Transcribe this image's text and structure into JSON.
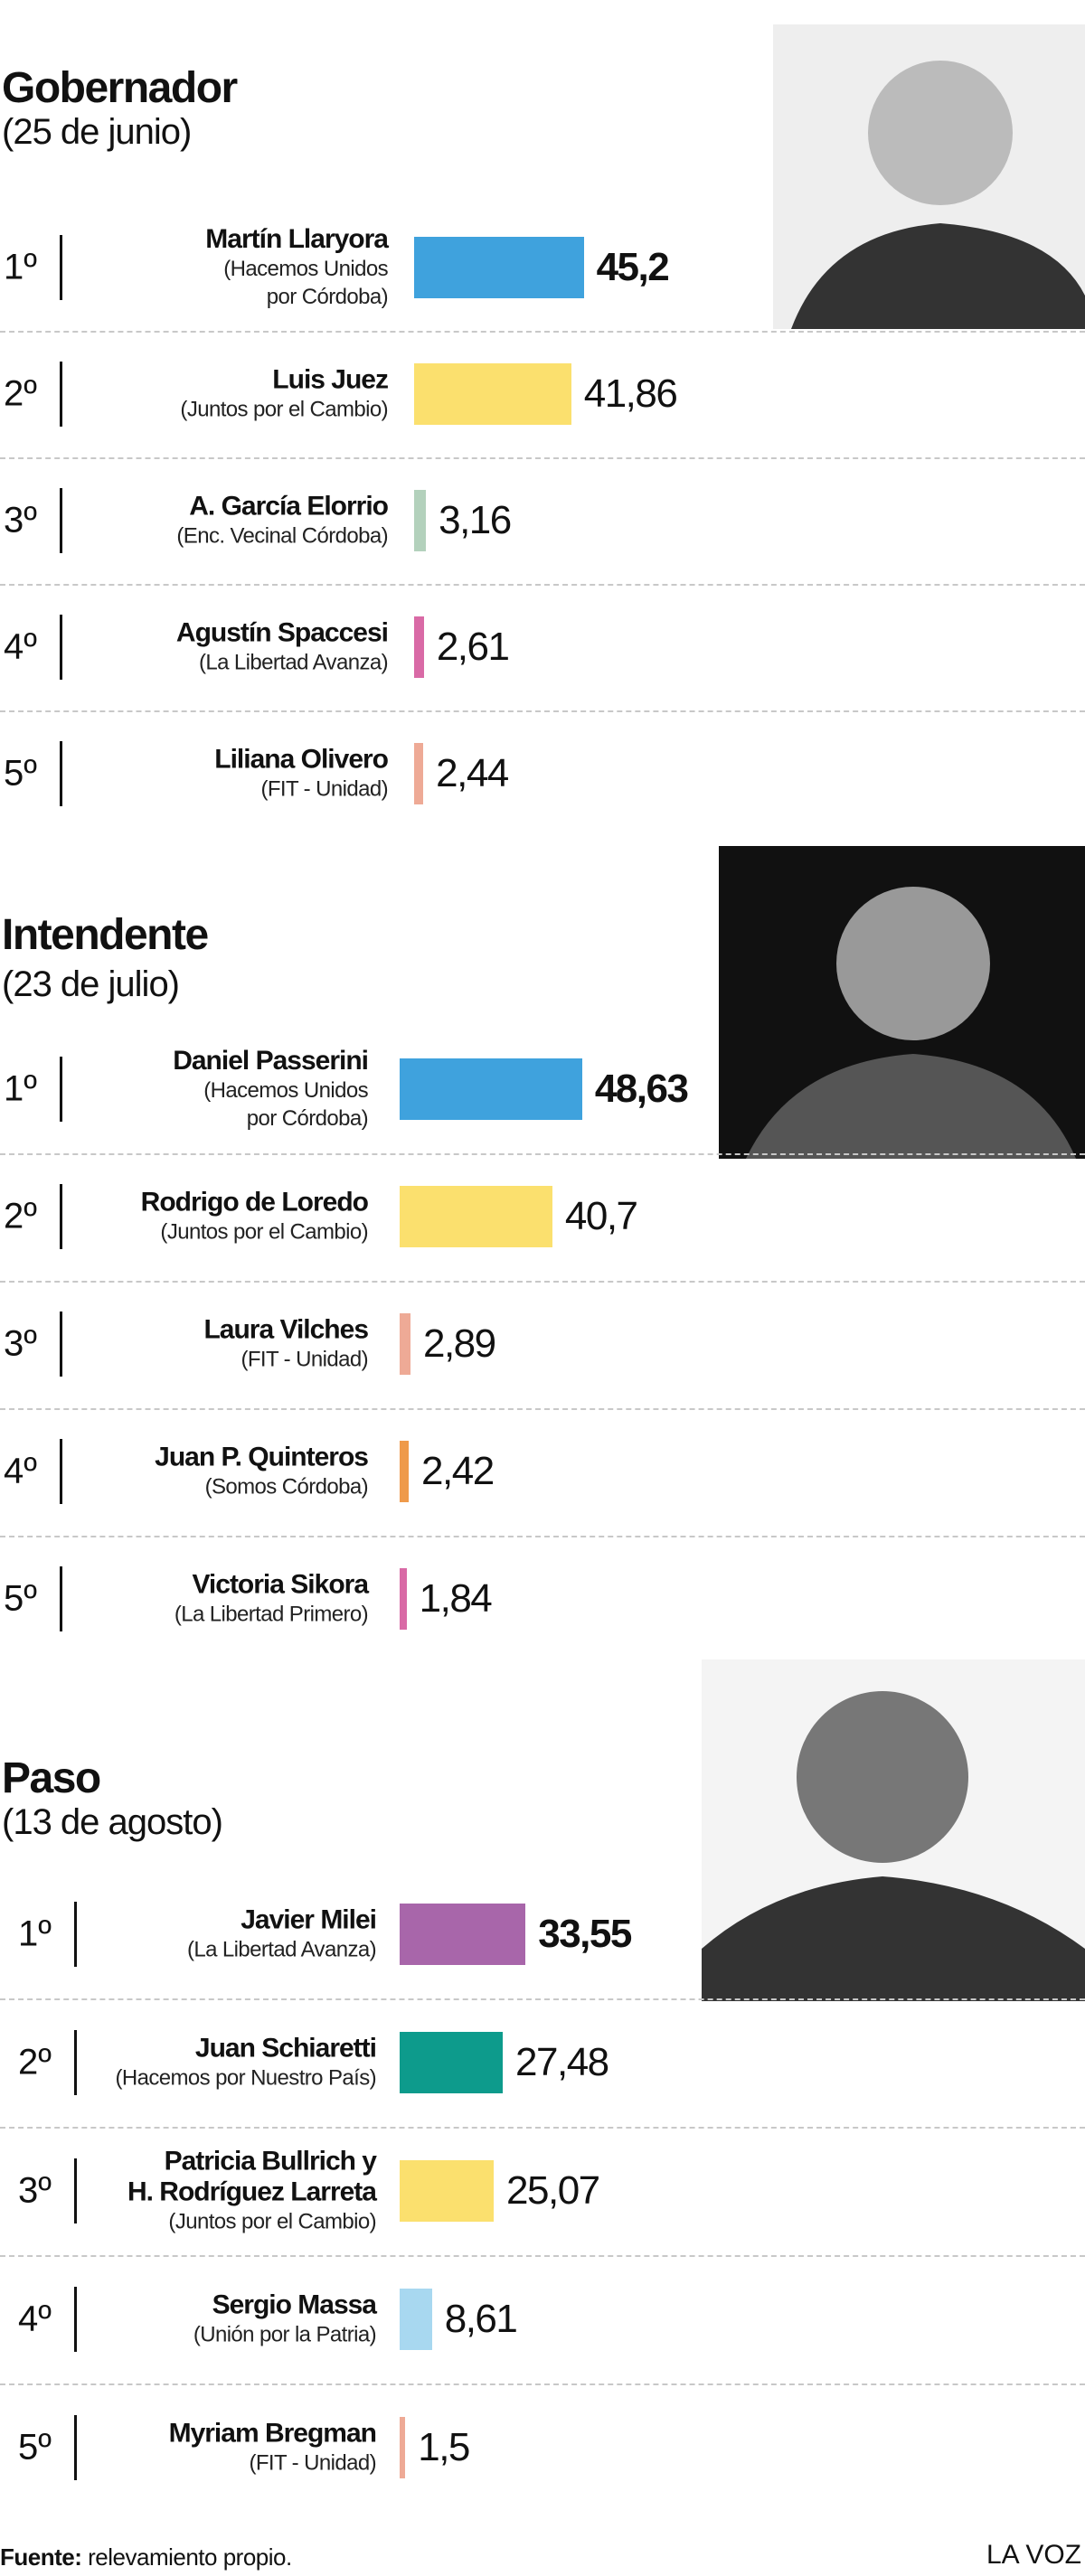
{
  "chart_data": [
    {
      "type": "bar",
      "title": "Gobernador",
      "subtitle": "(25 de junio)",
      "ranks": [
        "1º",
        "2º",
        "3º",
        "4º",
        "5º"
      ],
      "categories": [
        "Martín Llaryora",
        "Luis Juez",
        "A. García Elorrio",
        "Agustín Spaccesi",
        "Liliana Olivero"
      ],
      "parties": [
        "(Hacemos Unidos\npor Córdoba)",
        "(Juntos por el Cambio)",
        "(Enc. Vecinal Córdoba)",
        "(La Libertad Avanza)",
        "(FIT - Unidad)"
      ],
      "values": [
        45.2,
        41.86,
        3.16,
        2.61,
        2.44
      ],
      "value_labels": [
        "45,2",
        "41,86",
        "3,16",
        "2,61",
        "2,44"
      ],
      "colors": [
        "#3fa2dd",
        "#fbe06e",
        "#b3d1bc",
        "#d96aa6",
        "#eeaa96"
      ]
    },
    {
      "type": "bar",
      "title": "Intendente",
      "subtitle": "(23 de julio)",
      "ranks": [
        "1º",
        "2º",
        "3º",
        "4º",
        "5º"
      ],
      "categories": [
        "Daniel Passerini",
        "Rodrigo de Loredo",
        "Laura Vilches",
        "Juan P. Quinteros",
        "Victoria Sikora"
      ],
      "parties": [
        "(Hacemos Unidos\npor Córdoba)",
        "(Juntos por el Cambio)",
        "(FIT - Unidad)",
        "(Somos Córdoba)",
        "(La Libertad Primero)"
      ],
      "values": [
        48.63,
        40.7,
        2.89,
        2.42,
        1.84
      ],
      "value_labels": [
        "48,63",
        "40,7",
        "2,89",
        "2,42",
        "1,84"
      ],
      "colors": [
        "#3fa2dd",
        "#fbe06e",
        "#eeaa96",
        "#ef9a4a",
        "#d96aa6"
      ]
    },
    {
      "type": "bar",
      "title": "Paso",
      "subtitle": "(13 de agosto)",
      "ranks": [
        "1º",
        "2º",
        "3º",
        "4º",
        "5º"
      ],
      "categories": [
        "Javier Milei",
        "Juan Schiaretti",
        "Patricia Bullrich y\nH. Rodríguez Larreta",
        "Sergio Massa",
        "Myriam Bregman"
      ],
      "parties": [
        "(La Libertad Avanza)",
        "(Hacemos por Nuestro País)",
        "(Juntos por el Cambio)",
        "(Unión por la Patria)",
        "(FIT - Unidad)"
      ],
      "values": [
        33.55,
        27.48,
        25.07,
        8.61,
        1.5
      ],
      "value_labels": [
        "33,55",
        "27,48",
        "25,07",
        "8,61",
        "1,5"
      ],
      "colors": [
        "#a866aa",
        "#0d9b8c",
        "#fbe06e",
        "#a8d8f0",
        "#eeaa96"
      ]
    }
  ],
  "source_label": "Fuente:",
  "source": "relevamiento propio.",
  "brand": "LA VOZ"
}
